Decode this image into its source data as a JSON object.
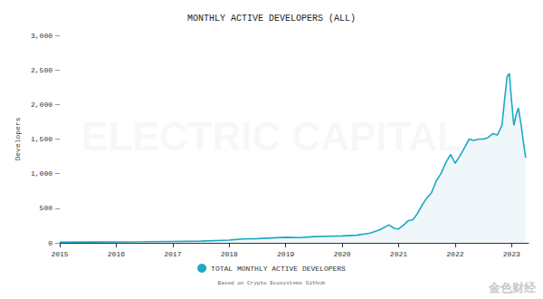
{
  "chart_data": {
    "type": "line",
    "title": "MONTHLY ACTIVE DEVELOPERS (ALL)",
    "subtitle": "Based on Crypto Ecosystems Github",
    "y_label": "Developers",
    "x": [
      2015,
      2015.5,
      2016,
      2016.5,
      2017,
      2017.5,
      2018,
      2018.25,
      2018.5,
      2018.75,
      2019,
      2019.25,
      2019.5,
      2019.75,
      2020,
      2020.25,
      2020.5,
      2020.67,
      2020.83,
      2020.92,
      2021,
      2021.08,
      2021.17,
      2021.25,
      2021.33,
      2021.42,
      2021.5,
      2021.58,
      2021.67,
      2021.75,
      2021.83,
      2021.92,
      2022,
      2022.08,
      2022.17,
      2022.25,
      2022.33,
      2022.42,
      2022.5,
      2022.58,
      2022.67,
      2022.75,
      2022.83,
      2022.88,
      2022.92,
      2022.96,
      2023,
      2023.04,
      2023.08,
      2023.12,
      2023.17,
      2023.21,
      2023.25
    ],
    "series": [
      {
        "name": "TOTAL MONTHLY ACTIVE DEVELOPERS",
        "color": "#1ba9c4",
        "values": [
          10,
          12,
          14,
          16,
          20,
          25,
          40,
          55,
          60,
          70,
          80,
          75,
          90,
          95,
          100,
          110,
          140,
          190,
          260,
          210,
          200,
          250,
          320,
          330,
          420,
          550,
          650,
          720,
          900,
          1000,
          1150,
          1280,
          1150,
          1250,
          1380,
          1500,
          1480,
          1500,
          1500,
          1520,
          1580,
          1560,
          1700,
          2100,
          2400,
          2450,
          2050,
          1700,
          1850,
          1950,
          1700,
          1450,
          1230
        ]
      }
    ],
    "xlim": [
      2015,
      2023.3
    ],
    "xticks": [
      2015,
      2016,
      2017,
      2018,
      2019,
      2020,
      2021,
      2022,
      2023
    ],
    "ylim": [
      0,
      3000
    ],
    "yticks": [
      0,
      500,
      {
        "value": 1000,
        "label": "1,000"
      },
      {
        "value": 1500,
        "label": "1,500"
      },
      {
        "value": 2000,
        "label": "2,000"
      },
      {
        "value": 2500,
        "label": "2,500"
      },
      {
        "value": 3000,
        "label": "3,000"
      }
    ],
    "grid": false,
    "legend": "bottom",
    "annotations": [
      {
        "text": "ELECTRIC CAPITAL"
      },
      {
        "text": "金色财经"
      }
    ]
  }
}
